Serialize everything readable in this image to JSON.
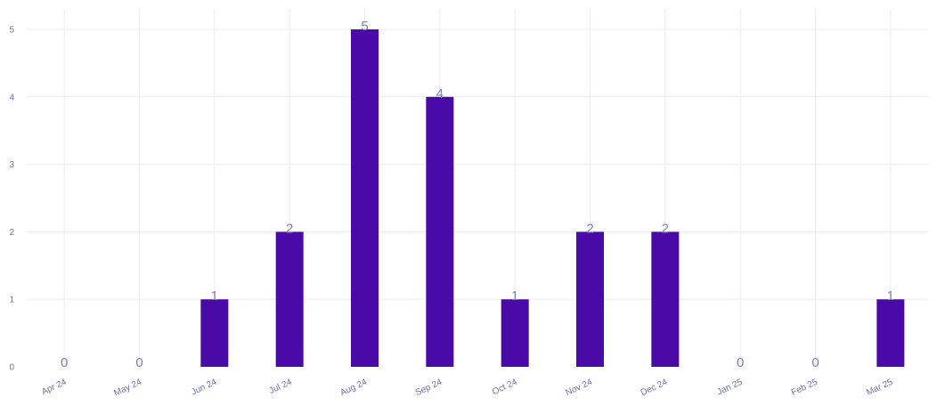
{
  "chart_data": {
    "type": "bar",
    "categories": [
      "Apr 24",
      "May 24",
      "Jun 24",
      "Jul 24",
      "Aug 24",
      "Sep 24",
      "Oct 24",
      "Nov 24",
      "Dec 24",
      "Jan 25",
      "Feb 25",
      "Mar 25"
    ],
    "values": [
      0,
      0,
      1,
      2,
      5,
      4,
      1,
      2,
      2,
      0,
      0,
      1
    ],
    "y_ticks": [
      "0",
      "1",
      "2",
      "3",
      "4",
      "5"
    ],
    "ylim": [
      0,
      5.3
    ],
    "grid": true,
    "bar_color": "#4a0aa8",
    "label_color": "#7a7fae",
    "tick_color": "#6b6fa8"
  }
}
